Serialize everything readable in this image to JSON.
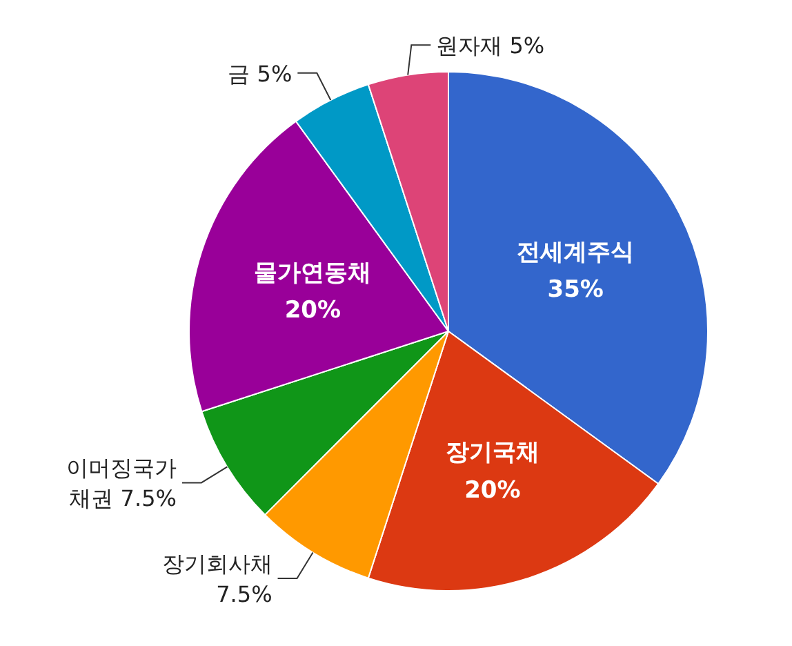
{
  "chart_data": {
    "type": "pie",
    "categories": [
      "전세계주식",
      "장기국채",
      "장기회사채",
      "이머징국가 채권",
      "물가연동채",
      "금",
      "원자재"
    ],
    "values": [
      35,
      20,
      7.5,
      7.5,
      20,
      5,
      5
    ],
    "colors": [
      "#3366cc",
      "#dc3912",
      "#ff9900",
      "#109618",
      "#990099",
      "#0099c6",
      "#dd4477"
    ],
    "value_labels": [
      "35%",
      "20%",
      "7.5%",
      "7.5%",
      "20%",
      "5%",
      "5%"
    ]
  }
}
